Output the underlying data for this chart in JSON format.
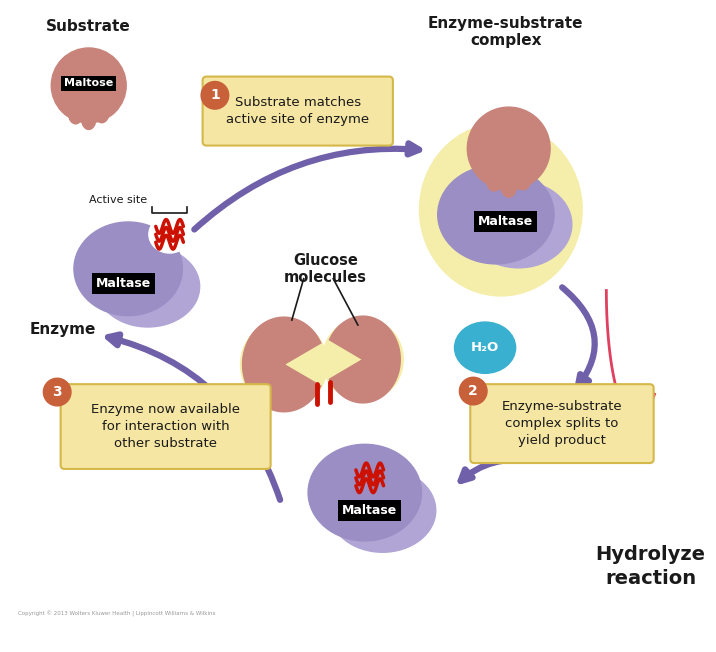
{
  "bg_color": "#ffffff",
  "purple_enzyme_color": "#9b8ec4",
  "purple_enzyme_light": "#b0a5d5",
  "substrate_color": "#c8847a",
  "substrate_drip_color": "#b8726a",
  "label_box_color": "#f5e6a3",
  "label_box_edge": "#d4b84a",
  "step_badge_color": "#c8603a",
  "arrow_color": "#7060aa",
  "water_color": "#3ab0d0",
  "text_color": "#1a1a1a",
  "glow_color": "#f5eeaa",
  "maltase_label": "Maltase",
  "maltose_label": "Maltose",
  "substrate_title": "Substrate",
  "active_site_label": "Active site",
  "enzyme_label": "Enzyme",
  "glucose_label": "Glucose\nmolecules",
  "complex_title": "Enzyme-substrate\ncomplex",
  "step1_text": "Substrate matches\nactive site of enzyme",
  "step2_text": "Enzyme-substrate\ncomplex splits to\nyield product",
  "step3_text": "Enzyme now available\nfor interaction with\nother substrate",
  "hydrolyze_text": "Hydrolyze\nreaction",
  "water_label": "H₂O",
  "copyright": "Copyright © 2013 Wolters Kluwer Health | Lippincott Williams & Wilkins"
}
